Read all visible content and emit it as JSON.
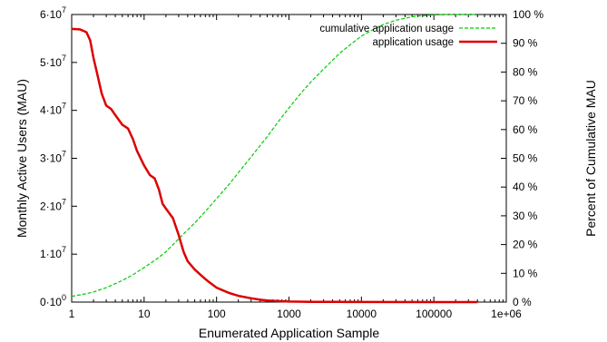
{
  "chart_data": {
    "type": "line",
    "xlabel": "Enumerated Application Sample",
    "ylabel": "Monthly Active Users (MAU)",
    "y2label": "Percent of Cumulative MAU",
    "xscale": "log",
    "xlim": [
      1,
      1000000
    ],
    "ylim": [
      0,
      60000000
    ],
    "y2lim": [
      0,
      100
    ],
    "grid": false,
    "legend_position": "top-right",
    "x_ticks": [
      {
        "value": 1,
        "label": "1"
      },
      {
        "value": 10,
        "label": "10"
      },
      {
        "value": 100,
        "label": "100"
      },
      {
        "value": 1000,
        "label": "1000"
      },
      {
        "value": 10000,
        "label": "10000"
      },
      {
        "value": 100000,
        "label": "100000"
      },
      {
        "value": 1000000,
        "label": "1e+06"
      }
    ],
    "y_ticks": [
      {
        "value": 0,
        "mant": "0·10",
        "exp": "0"
      },
      {
        "value": 10000000,
        "mant": "1·10",
        "exp": "7"
      },
      {
        "value": 20000000,
        "mant": "2·10",
        "exp": "7"
      },
      {
        "value": 30000000,
        "mant": "3·10",
        "exp": "7"
      },
      {
        "value": 40000000,
        "mant": "4·10",
        "exp": "7"
      },
      {
        "value": 50000000,
        "mant": "5·10",
        "exp": "7"
      },
      {
        "value": 60000000,
        "mant": "6·10",
        "exp": "7"
      }
    ],
    "y2_ticks": [
      {
        "value": 0,
        "label": "0 %"
      },
      {
        "value": 10,
        "label": "10 %"
      },
      {
        "value": 20,
        "label": "20 %"
      },
      {
        "value": 30,
        "label": "30 %"
      },
      {
        "value": 40,
        "label": "40 %"
      },
      {
        "value": 50,
        "label": "50 %"
      },
      {
        "value": 60,
        "label": "60 %"
      },
      {
        "value": 70,
        "label": "70 %"
      },
      {
        "value": 80,
        "label": "80 %"
      },
      {
        "value": 90,
        "label": "90 %"
      },
      {
        "value": 100,
        "label": "100 %"
      }
    ],
    "series": [
      {
        "name": "cumulative application usage",
        "axis": "right",
        "color": "#00cc00",
        "dash": "dashed",
        "x": [
          1,
          1.5,
          2,
          3,
          5,
          7,
          10,
          15,
          20,
          30,
          50,
          70,
          100,
          150,
          200,
          300,
          500,
          700,
          1000,
          1500,
          2000,
          3000,
          5000,
          7000,
          10000,
          15000,
          20000,
          30000,
          50000,
          70000,
          100000,
          150000,
          200000,
          300000,
          400000
        ],
        "values": [
          2,
          2.8,
          3.5,
          5,
          7.5,
          9.5,
          12,
          15,
          17.5,
          22,
          27.5,
          31.5,
          36,
          41,
          45,
          50.5,
          57.5,
          62.5,
          67.5,
          73,
          76.5,
          81,
          86.5,
          89.5,
          92.5,
          95,
          96.5,
          98,
          99.2,
          99.6,
          99.85,
          100,
          100,
          100,
          100
        ]
      },
      {
        "name": "application usage",
        "axis": "left",
        "color": "#dd0000",
        "dash": "solid",
        "x": [
          1,
          1.3,
          1.6,
          1.8,
          2,
          2.3,
          2.6,
          3,
          3.5,
          4,
          5,
          6,
          7,
          8,
          10,
          12,
          14,
          16,
          18,
          20,
          25,
          30,
          35,
          40,
          50,
          60,
          70,
          80,
          100,
          120,
          150,
          200,
          300,
          400,
          500,
          700,
          1000,
          2000,
          5000,
          10000,
          100000,
          400000
        ],
        "values": [
          57000000,
          56900000,
          56300000,
          54600000,
          51000000,
          47000000,
          43500000,
          41000000,
          40300000,
          39000000,
          37000000,
          36200000,
          34000000,
          31500000,
          28500000,
          26500000,
          25800000,
          23500000,
          20500000,
          19500000,
          17500000,
          14000000,
          10500000,
          8500000,
          6800000,
          5700000,
          4800000,
          4100000,
          3000000,
          2500000,
          1900000,
          1300000,
          800000,
          500000,
          350000,
          200000,
          120000,
          60000,
          30000,
          15000,
          5000,
          2000
        ]
      }
    ]
  }
}
